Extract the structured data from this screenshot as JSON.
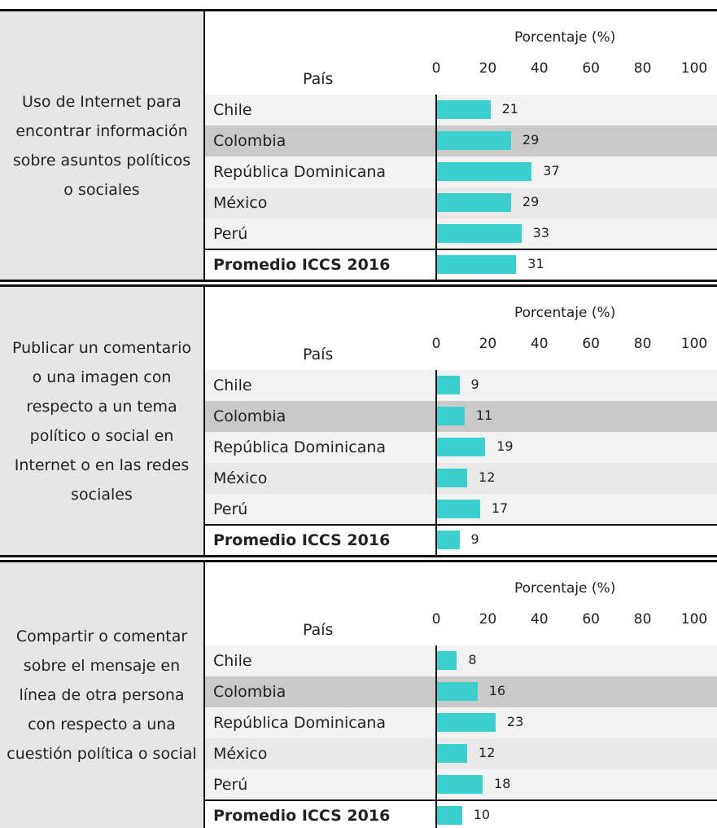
{
  "chart_data": [
    {
      "type": "bar",
      "title": "Uso de Internet para encontrar información sobre asuntos políticos o sociales",
      "axis_label": "Porcentaje (%)",
      "category_label": "País",
      "categories": [
        "Chile",
        "Colombia",
        "República Dominicana",
        "México",
        "Perú",
        "Promedio ICCS 2016"
      ],
      "values": [
        21,
        29,
        37,
        29,
        33,
        31
      ],
      "color": "#3ccfcf",
      "xlim": [
        0,
        100
      ],
      "xticks": [
        0,
        20,
        40,
        60,
        80,
        100
      ]
    },
    {
      "type": "bar",
      "title": "Publicar un comentario o una imagen con respecto a un tema político o social en Internet o en las redes sociales",
      "axis_label": "Porcentaje (%)",
      "category_label": "País",
      "categories": [
        "Chile",
        "Colombia",
        "República Dominicana",
        "México",
        "Perú",
        "Promedio ICCS 2016"
      ],
      "values": [
        9,
        11,
        19,
        12,
        17,
        9
      ],
      "color": "#3ccfcf",
      "xlim": [
        0,
        100
      ],
      "xticks": [
        0,
        20,
        40,
        60,
        80,
        100
      ]
    },
    {
      "type": "bar",
      "title": "Compartir o comentar sobre el mensaje en línea de otra persona con respecto a una cuestión política o social",
      "axis_label": "Porcentaje (%)",
      "category_label": "País",
      "categories": [
        "Chile",
        "Colombia",
        "República Dominicana",
        "México",
        "Perú",
        "Promedio ICCS 2016"
      ],
      "values": [
        8,
        16,
        23,
        12,
        18,
        10
      ],
      "color": "#3ccfcf",
      "xlim": [
        0,
        100
      ],
      "xticks": [
        0,
        20,
        40,
        60,
        80,
        100
      ]
    }
  ]
}
